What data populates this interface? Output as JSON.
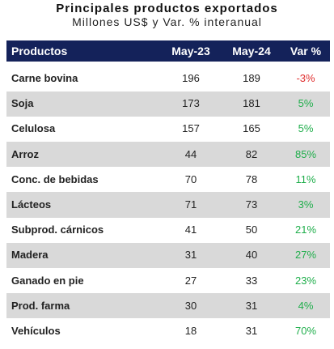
{
  "header": {
    "title": "Principales productos exportados",
    "subtitle": "Millones US$ y Var. % interanual"
  },
  "table": {
    "columns": [
      "Productos",
      "May-23",
      "May-24",
      "Var %"
    ],
    "rows": [
      [
        "Carne bovina",
        196,
        189,
        "-3%"
      ],
      [
        "Soja",
        173,
        181,
        "5%"
      ],
      [
        "Celulosa",
        157,
        165,
        "5%"
      ],
      [
        "Arroz",
        44,
        82,
        "85%"
      ],
      [
        "Conc. de bebidas",
        70,
        78,
        "11%"
      ],
      [
        "Lácteos",
        71,
        73,
        "3%"
      ],
      [
        "Subprod. cárnicos",
        41,
        50,
        "21%"
      ],
      [
        "Madera",
        31,
        40,
        "27%"
      ],
      [
        "Ganado en pie",
        27,
        33,
        "23%"
      ],
      [
        "Prod. farma",
        30,
        31,
        "4%"
      ],
      [
        "Vehículos",
        18,
        31,
        "70%"
      ]
    ]
  }
}
